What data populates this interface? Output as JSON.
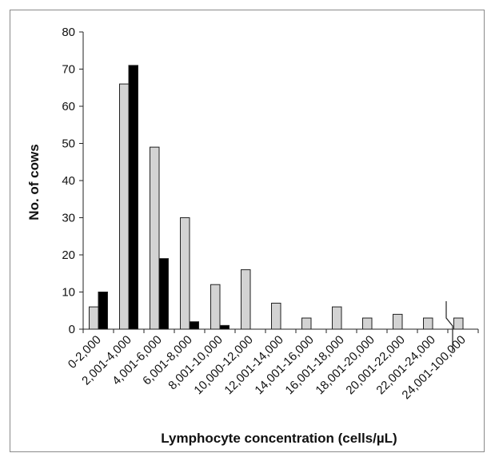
{
  "chart_data": {
    "type": "bar",
    "title": "",
    "xlabel": "Lymphocyte concentration (cells/µL)",
    "ylabel": "No. of cows",
    "ylim": [
      0,
      80
    ],
    "yticks": [
      "0",
      "10",
      "20",
      "30",
      "40",
      "50",
      "60",
      "70",
      "80"
    ],
    "categories": [
      "0-2,000",
      "2,001-4,000",
      "4,001-6,000",
      "6,001-8,000",
      "8,001-10,000",
      "10,000-12,000",
      "12,001-14,000",
      "14,001-16,000",
      "16,001-18,000",
      "18,001-20,000",
      "20,001-22,000",
      "22,001-24,000",
      "24,001-100,000"
    ],
    "series": [
      {
        "values": [
          6,
          66,
          49,
          30,
          12,
          16,
          7,
          3,
          6,
          3,
          4,
          3,
          3
        ],
        "color": "#d3d3d3"
      },
      {
        "values": [
          10,
          71,
          19,
          2,
          1,
          0,
          0,
          0,
          0,
          0,
          0,
          0,
          0
        ],
        "color": "#000000"
      }
    ],
    "axis_break": "between 22,001-24,000 and 24,001-100,000",
    "grid": false,
    "legend": "none"
  }
}
